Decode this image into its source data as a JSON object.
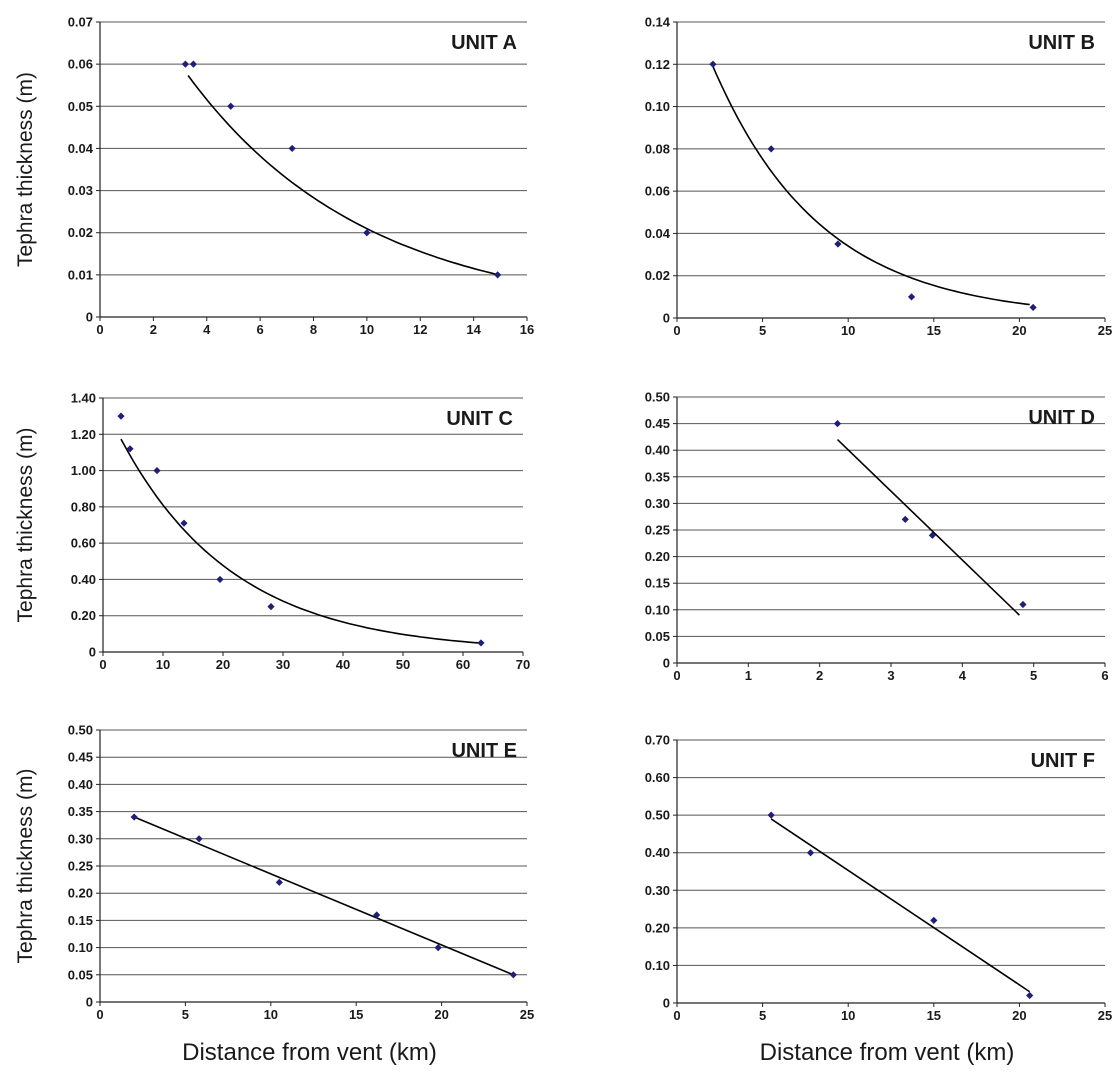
{
  "figure": {
    "ylabel": "Tephra thickness (m)",
    "xlabel": "Distance from vent (km)"
  },
  "colors": {
    "marker": "#1f1f7a",
    "line": "#000000",
    "grid": "#555555",
    "axis": "#222222"
  },
  "chart_data": [
    {
      "type": "scatter",
      "title": "UNIT A",
      "xlabel": "",
      "ylabel": "Tephra thickness (m)",
      "xlim": [
        0,
        16
      ],
      "ylim": [
        0,
        0.07
      ],
      "xticks": [
        "0",
        "2",
        "4",
        "6",
        "8",
        "10",
        "12",
        "14",
        "16"
      ],
      "yticks": [
        "0",
        "0.01",
        "0.02",
        "0.03",
        "0.04",
        "0.05",
        "0.06",
        "0.07"
      ],
      "grid": "horizontal",
      "points": [
        [
          3.2,
          0.06
        ],
        [
          3.5,
          0.06
        ],
        [
          4.9,
          0.05
        ],
        [
          7.2,
          0.04
        ],
        [
          10.0,
          0.02
        ],
        [
          14.9,
          0.01
        ]
      ],
      "trend": {
        "type": "exponential",
        "a": 0.094,
        "b": 0.15,
        "x": [
          3.3,
          15.0
        ]
      }
    },
    {
      "type": "scatter",
      "title": "UNIT B",
      "xlabel": "",
      "ylabel": "",
      "xlim": [
        0,
        25
      ],
      "ylim": [
        0,
        0.14
      ],
      "xticks": [
        "0",
        "5",
        "10",
        "15",
        "20",
        "25"
      ],
      "yticks": [
        "0",
        "0.02",
        "0.04",
        "0.06",
        "0.08",
        "0.10",
        "0.12",
        "0.14"
      ],
      "grid": "horizontal",
      "points": [
        [
          2.1,
          0.12
        ],
        [
          5.5,
          0.08
        ],
        [
          9.4,
          0.035
        ],
        [
          13.7,
          0.01
        ],
        [
          20.8,
          0.005
        ]
      ],
      "trend": {
        "type": "exponential",
        "a": 0.166,
        "b": 0.1585,
        "x": [
          2.0,
          20.6
        ]
      }
    },
    {
      "type": "scatter",
      "title": "UNIT C",
      "xlabel": "",
      "ylabel": "Tephra thickness (m)",
      "xlim": [
        0,
        70
      ],
      "ylim": [
        0,
        1.4
      ],
      "xticks": [
        "0",
        "10",
        "20",
        "30",
        "40",
        "50",
        "60",
        "70"
      ],
      "yticks": [
        "0",
        "0.20",
        "0.40",
        "0.60",
        "0.80",
        "1.00",
        "1.20",
        "1.40"
      ],
      "grid": "horizontal",
      "points": [
        [
          3.0,
          1.3
        ],
        [
          4.5,
          1.12
        ],
        [
          9.0,
          1.0
        ],
        [
          13.5,
          0.71
        ],
        [
          19.5,
          0.4
        ],
        [
          28.0,
          0.25
        ],
        [
          63.0,
          0.05
        ]
      ],
      "trend": {
        "type": "exponential",
        "a": 1.376,
        "b": 0.053,
        "x": [
          3.0,
          63.0
        ]
      }
    },
    {
      "type": "scatter",
      "title": "UNIT D",
      "xlabel": "",
      "ylabel": "",
      "xlim": [
        0,
        6
      ],
      "ylim": [
        0,
        0.5
      ],
      "xticks": [
        "0",
        "1",
        "2",
        "3",
        "4",
        "5",
        "6"
      ],
      "yticks": [
        "0",
        "0.05",
        "0.10",
        "0.15",
        "0.20",
        "0.25",
        "0.30",
        "0.35",
        "0.40",
        "0.45",
        "0.50"
      ],
      "grid": "horizontal",
      "points": [
        [
          2.25,
          0.45
        ],
        [
          3.2,
          0.27
        ],
        [
          3.58,
          0.24
        ],
        [
          4.85,
          0.11
        ]
      ],
      "trend": {
        "type": "linear",
        "x": [
          2.25,
          4.8
        ],
        "y": [
          0.42,
          0.09
        ]
      }
    },
    {
      "type": "scatter",
      "title": "UNIT E",
      "xlabel": "Distance from vent (km)",
      "ylabel": "Tephra thickness (m)",
      "xlim": [
        0,
        25
      ],
      "ylim": [
        0,
        0.5
      ],
      "xticks": [
        "0",
        "5",
        "10",
        "15",
        "20",
        "25"
      ],
      "yticks": [
        "0",
        "0.05",
        "0.10",
        "0.15",
        "0.20",
        "0.25",
        "0.30",
        "0.35",
        "0.40",
        "0.45",
        "0.50"
      ],
      "grid": "horizontal",
      "points": [
        [
          2.0,
          0.34
        ],
        [
          5.8,
          0.3
        ],
        [
          10.5,
          0.22
        ],
        [
          16.2,
          0.16
        ],
        [
          19.8,
          0.1
        ],
        [
          24.2,
          0.05
        ]
      ],
      "trend": {
        "type": "linear",
        "x": [
          2.0,
          24.2
        ],
        "y": [
          0.34,
          0.05
        ]
      }
    },
    {
      "type": "scatter",
      "title": "UNIT F",
      "xlabel": "Distance from vent (km)",
      "ylabel": "",
      "xlim": [
        0,
        25
      ],
      "ylim": [
        0,
        0.7
      ],
      "xticks": [
        "0",
        "5",
        "10",
        "15",
        "20",
        "25"
      ],
      "yticks": [
        "0",
        "0.10",
        "0.20",
        "0.30",
        "0.40",
        "0.50",
        "0.60",
        "0.70"
      ],
      "grid": "horizontal",
      "points": [
        [
          5.5,
          0.5
        ],
        [
          7.8,
          0.4
        ],
        [
          15.0,
          0.22
        ],
        [
          20.6,
          0.02
        ]
      ],
      "trend": {
        "type": "linear",
        "x": [
          5.5,
          20.6
        ],
        "y": [
          0.49,
          0.03
        ]
      }
    }
  ]
}
